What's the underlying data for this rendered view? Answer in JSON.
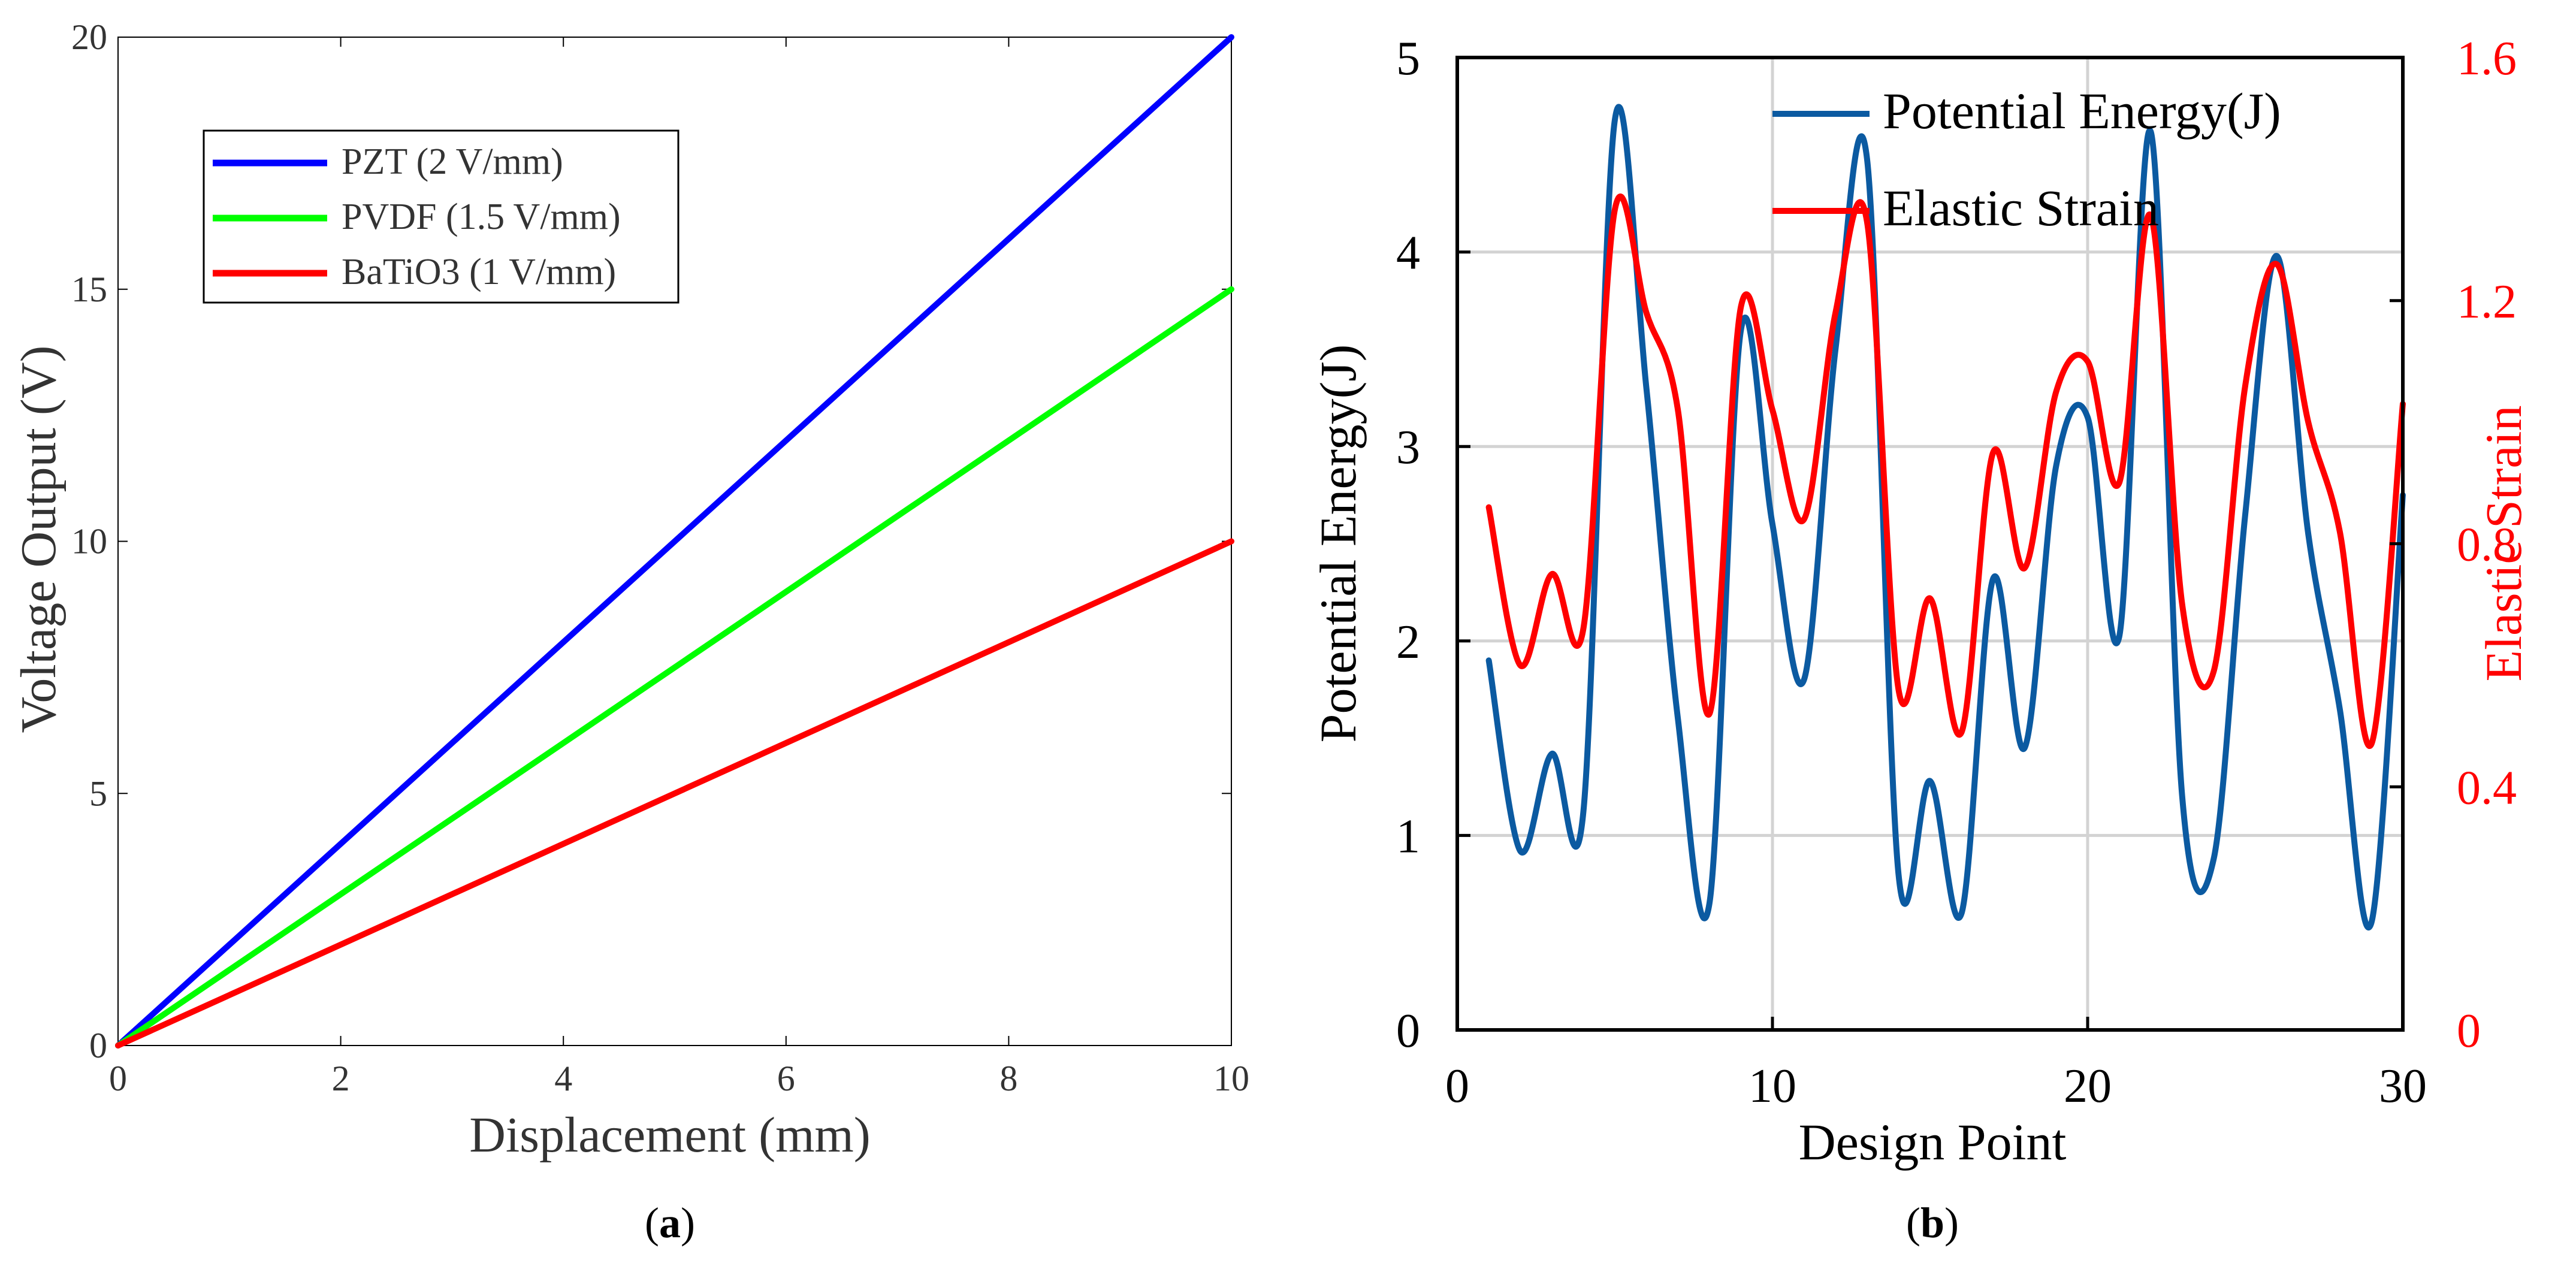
{
  "colors": {
    "pzt": "#0000ff",
    "pvdf": "#00ff00",
    "batio3": "#ff0000",
    "potential": "#0b5aa1",
    "elastic": "#ff0000",
    "elastic_axis": "#ff0000",
    "axis": "#000000",
    "panel_a_text": "#333333",
    "grid": "#d3d3d3"
  },
  "panel_labels": {
    "a": "a",
    "b": "b"
  },
  "chart_data": [
    {
      "id": "panel-a",
      "type": "line",
      "title": "",
      "xlabel": "Displacement (mm)",
      "ylabel": "Voltage Output (V)",
      "xlim": [
        0,
        10
      ],
      "ylim": [
        0,
        20
      ],
      "xticks": [
        0,
        2,
        4,
        6,
        8,
        10
      ],
      "yticks": [
        0,
        5,
        10,
        15,
        20
      ],
      "grid": false,
      "legend_position": "top-left",
      "series": [
        {
          "name": "PZT (2 V/mm)",
          "color_key": "pzt",
          "x": [
            0,
            10
          ],
          "y": [
            0,
            20
          ]
        },
        {
          "name": "PVDF (1.5 V/mm)",
          "color_key": "pvdf",
          "x": [
            0,
            10
          ],
          "y": [
            0,
            15
          ]
        },
        {
          "name": "BaTiO3 (1 V/mm)",
          "color_key": "batio3",
          "x": [
            0,
            10
          ],
          "y": [
            0,
            10
          ]
        }
      ]
    },
    {
      "id": "panel-b",
      "type": "line",
      "title": "",
      "xlabel": "Design Point",
      "ylabel": "Potential Energy(J)",
      "y2label": "Elastic Strain",
      "xlim": [
        0,
        30
      ],
      "ylim": [
        0,
        5
      ],
      "y2lim": [
        0,
        1.6
      ],
      "xticks": [
        0,
        10,
        20,
        30
      ],
      "yticks": [
        0,
        1,
        2,
        3,
        4,
        5
      ],
      "y2ticks": [
        0,
        0.4,
        0.8,
        1.2,
        1.6
      ],
      "y2tick_labels": [
        "0",
        "0.4",
        "0.8",
        "1.2",
        "1.6"
      ],
      "grid": true,
      "legend_position": "top-right",
      "series": [
        {
          "name": "Potential Energy(J)",
          "axis": "left",
          "color_key": "potential",
          "x": [
            1,
            2,
            3,
            4,
            5,
            6,
            7,
            8,
            9,
            10,
            11,
            12,
            13,
            14,
            15,
            16,
            17,
            18,
            19,
            20,
            21,
            22,
            23,
            24,
            25,
            26,
            27,
            28,
            29,
            30
          ],
          "y": [
            1.9,
            0.92,
            1.42,
            1.12,
            4.68,
            3.3,
            1.6,
            0.65,
            3.6,
            2.6,
            1.8,
            3.5,
            4.48,
            0.8,
            1.28,
            0.6,
            2.32,
            1.45,
            2.9,
            3.15,
            2.02,
            4.62,
            1.2,
            0.88,
            2.65,
            3.98,
            2.55,
            1.65,
            0.55,
            2.75
          ]
        },
        {
          "name": "Elastic Strain",
          "axis": "right",
          "color_key": "elastic",
          "x": [
            1,
            2,
            3,
            4,
            5,
            6,
            7,
            8,
            9,
            10,
            11,
            12,
            13,
            14,
            15,
            16,
            17,
            18,
            19,
            20,
            21,
            22,
            23,
            24,
            25,
            26,
            27,
            28,
            29,
            30
          ],
          "y": [
            0.86,
            0.6,
            0.75,
            0.66,
            1.35,
            1.18,
            1.02,
            0.52,
            1.19,
            1.02,
            0.84,
            1.18,
            1.33,
            0.56,
            0.71,
            0.49,
            0.95,
            0.76,
            1.05,
            1.1,
            0.9,
            1.34,
            0.7,
            0.59,
            1.06,
            1.26,
            1.0,
            0.82,
            0.47,
            1.03
          ]
        }
      ]
    }
  ]
}
